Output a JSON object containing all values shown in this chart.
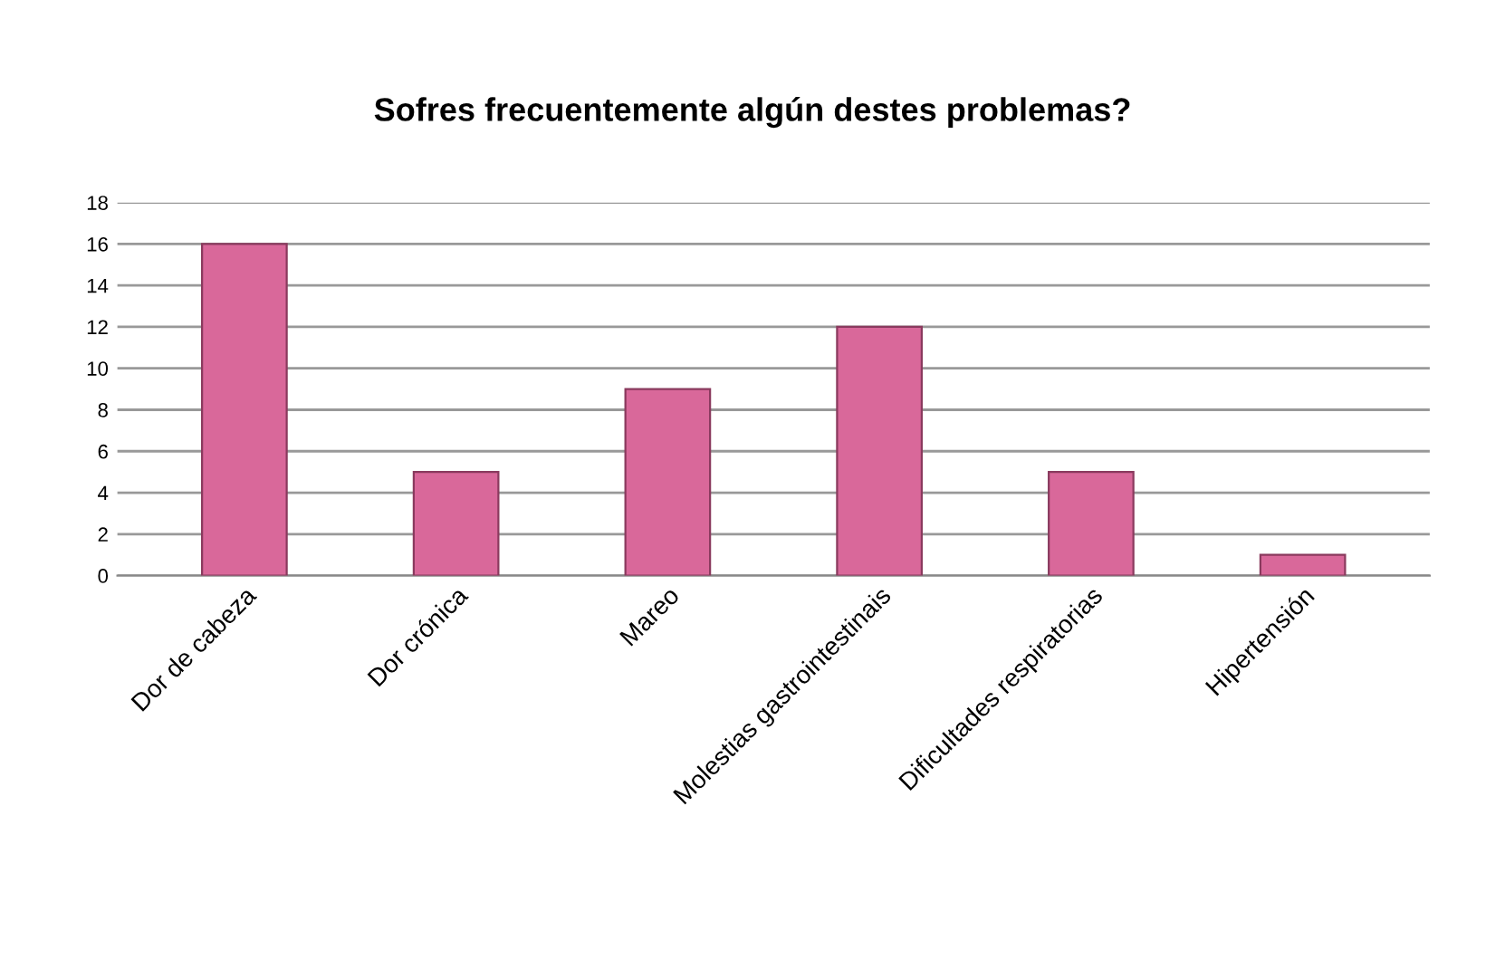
{
  "chart_data": {
    "type": "bar",
    "title": "Sofres frecuentemente algún destes problemas?",
    "categories": [
      "Dor de cabeza",
      "Dor crónica",
      "Mareo",
      "Molestias gastrointestinais",
      "Dificultades respiratorias",
      "Hipertensión"
    ],
    "values": [
      16,
      5,
      9,
      12,
      5,
      1
    ],
    "color": "#d9689a",
    "ylim": [
      0,
      18
    ],
    "yticks": [
      0,
      2,
      4,
      6,
      8,
      10,
      12,
      14,
      16,
      18
    ],
    "grid": "y",
    "legend": false
  }
}
